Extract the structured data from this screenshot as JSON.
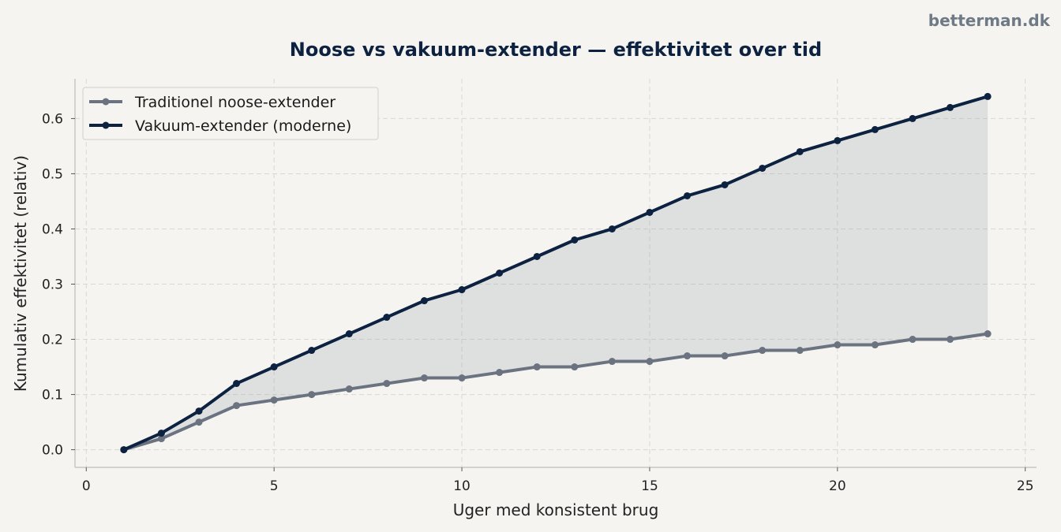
{
  "watermark": "betterman.dk",
  "chart_data": {
    "type": "line",
    "title": "Noose vs vakuum-extender — effektivitet over tid",
    "xlabel": "Uger med konsistent brug",
    "ylabel": "Kumulativ effektivitet (relativ)",
    "xlim": [
      -0.3,
      25.3
    ],
    "ylim": [
      -0.032,
      0.672
    ],
    "xticks": [
      0,
      5,
      10,
      15,
      20,
      25
    ],
    "xtick_labels": [
      "0",
      "5",
      "10",
      "15",
      "20",
      "25"
    ],
    "yticks": [
      0.0,
      0.1,
      0.2,
      0.3,
      0.4,
      0.5,
      0.6
    ],
    "ytick_labels": [
      "0.0",
      "0.1",
      "0.2",
      "0.3",
      "0.4",
      "0.5",
      "0.6"
    ],
    "grid": true,
    "legend_position": "top-left",
    "shaded_between_series": true,
    "x": [
      1,
      2,
      3,
      4,
      5,
      6,
      7,
      8,
      9,
      10,
      11,
      12,
      13,
      14,
      15,
      16,
      17,
      18,
      19,
      20,
      21,
      22,
      23,
      24
    ],
    "series": [
      {
        "name": "Traditionel noose-extender",
        "color": "#6b7280",
        "values": [
          0.0,
          0.02,
          0.05,
          0.08,
          0.09,
          0.1,
          0.11,
          0.12,
          0.13,
          0.13,
          0.14,
          0.15,
          0.15,
          0.16,
          0.16,
          0.17,
          0.17,
          0.18,
          0.18,
          0.19,
          0.19,
          0.2,
          0.2,
          0.21
        ]
      },
      {
        "name": "Vakuum-extender (moderne)",
        "color": "#0d2240",
        "values": [
          0.0,
          0.03,
          0.07,
          0.12,
          0.15,
          0.18,
          0.21,
          0.24,
          0.27,
          0.29,
          0.32,
          0.35,
          0.38,
          0.4,
          0.43,
          0.46,
          0.48,
          0.51,
          0.54,
          0.56,
          0.58,
          0.6,
          0.62,
          0.64
        ]
      }
    ]
  }
}
